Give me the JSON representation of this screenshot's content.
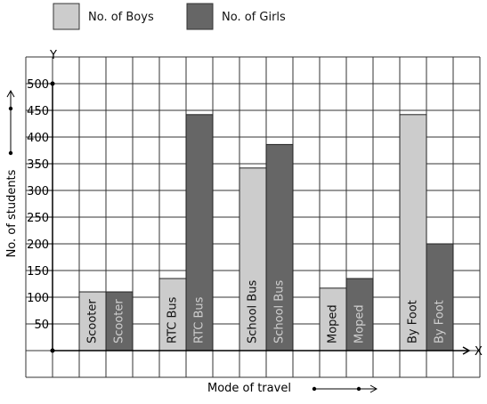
{
  "chart_data": {
    "type": "bar",
    "title": "",
    "xlabel": "Mode of travel",
    "ylabel": "No. of students",
    "x_axis_letter": "X",
    "y_axis_letter": "Y",
    "categories": [
      "Scooter",
      "RTC Bus",
      "School Bus",
      "Moped",
      "By Foot"
    ],
    "series": [
      {
        "name": "No. of Boys",
        "color": "#cccccc",
        "values": [
          110,
          135,
          342,
          117,
          442
        ]
      },
      {
        "name": "No. of Girls",
        "color": "#666666",
        "values": [
          110,
          442,
          386,
          135,
          200
        ]
      }
    ],
    "yticks": [
      50,
      100,
      150,
      200,
      250,
      300,
      350,
      400,
      450,
      500
    ],
    "ytick_labels": [
      "50",
      "100",
      "150",
      "200",
      "250",
      "300",
      "350",
      "400",
      "450",
      "500"
    ],
    "ylim": [
      0,
      500
    ],
    "grid": true,
    "legend_position": "top-left",
    "bar_labels_inside": true
  }
}
